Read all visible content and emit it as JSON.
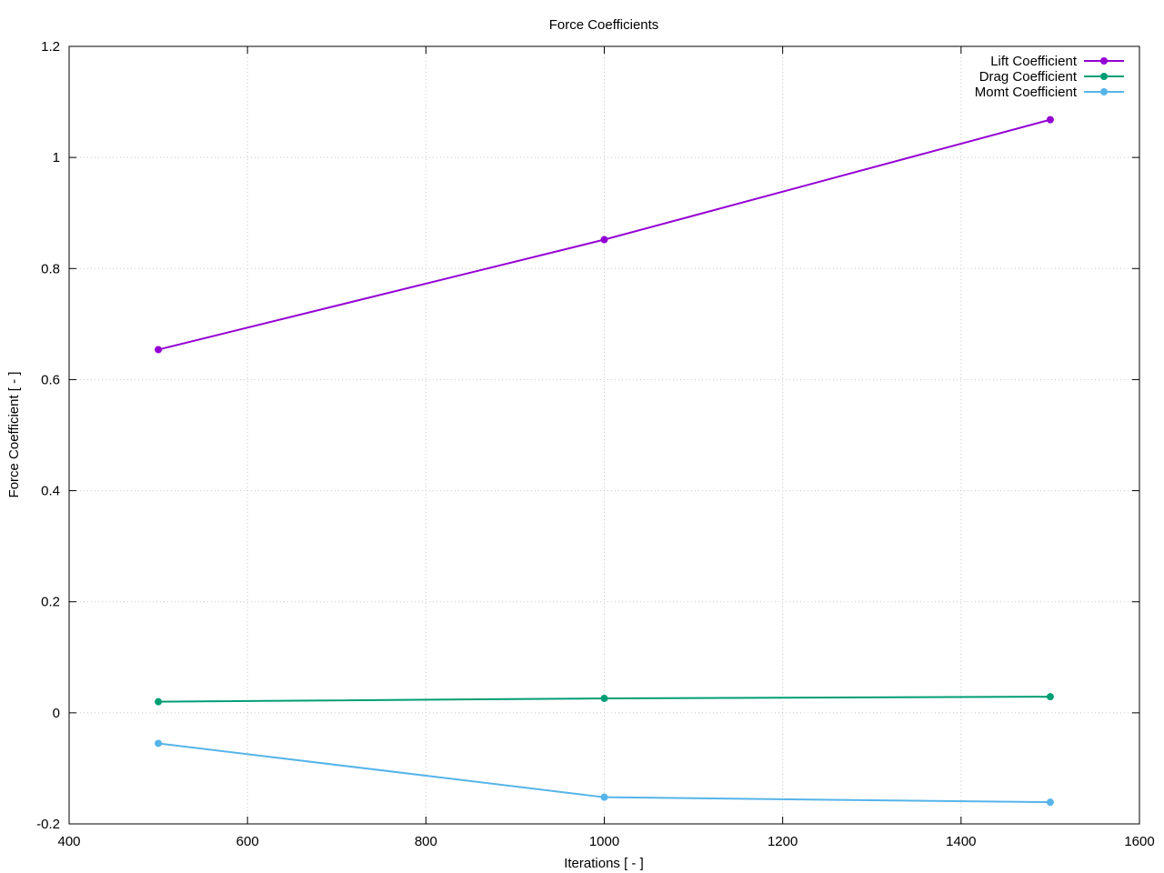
{
  "chart_data": {
    "type": "line",
    "title": "Force Coefficients",
    "xlabel": "Iterations [ - ]",
    "ylabel": "Force Coefficient [ - ]",
    "xlim": [
      400,
      1600
    ],
    "ylim": [
      -0.2,
      1.2
    ],
    "x_ticks": [
      400,
      600,
      800,
      1000,
      1200,
      1400,
      1600
    ],
    "y_ticks": [
      -0.2,
      0,
      0.2,
      0.4,
      0.6,
      0.8,
      1,
      1.2
    ],
    "x_tick_labels": [
      "400",
      "600",
      "800",
      "1000",
      "1200",
      "1400",
      "1600"
    ],
    "y_tick_labels": [
      "-0.2",
      "0",
      "0.2",
      "0.4",
      "0.6",
      "0.8",
      "1",
      "1.2"
    ],
    "grid": true,
    "legend_position": "top-right",
    "x": [
      500,
      1000,
      1500
    ],
    "series": [
      {
        "name": "Lift Coefficient",
        "color": "#9400d3",
        "values": [
          0.654,
          0.852,
          1.068
        ]
      },
      {
        "name": "Drag Coefficient",
        "color": "#009e73",
        "values": [
          0.02,
          0.026,
          0.029
        ]
      },
      {
        "name": "Momt Coefficient",
        "color": "#56b4e9",
        "values": [
          -0.055,
          -0.152,
          -0.161
        ]
      }
    ]
  }
}
